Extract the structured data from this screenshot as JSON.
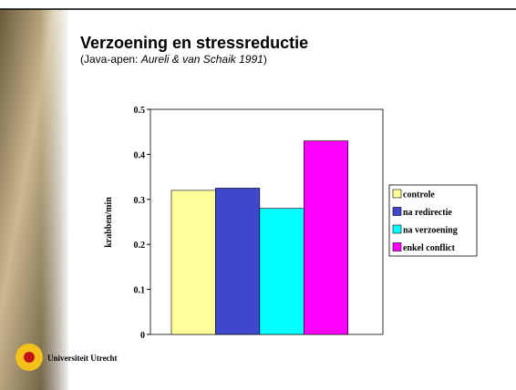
{
  "slide": {
    "title": "Verzoening en stressreductie",
    "subtitle_prefix": "(Java-apen:",
    "subtitle_italic": "Aureli & van Schaik 1991",
    "subtitle_suffix": ")",
    "logo_text": "Universiteit Utrecht"
  },
  "chart_data": {
    "type": "bar",
    "ylabel": "krabben/min",
    "categories": [
      null
    ],
    "series": [
      {
        "name": "controle",
        "color": "#ffff99",
        "values": [
          0.32
        ]
      },
      {
        "name": "na redirectie",
        "color": "#3f48cc",
        "values": [
          0.325
        ]
      },
      {
        "name": "na verzoening",
        "color": "#00ffff",
        "values": [
          0.28
        ]
      },
      {
        "name": "enkel conflict",
        "color": "#ff00ff",
        "values": [
          0.43
        ]
      }
    ],
    "ylim": [
      0,
      0.5
    ],
    "yticks": [
      0,
      0.1,
      0.2,
      0.3,
      0.4,
      0.5
    ],
    "grid": false,
    "legend": "right"
  }
}
